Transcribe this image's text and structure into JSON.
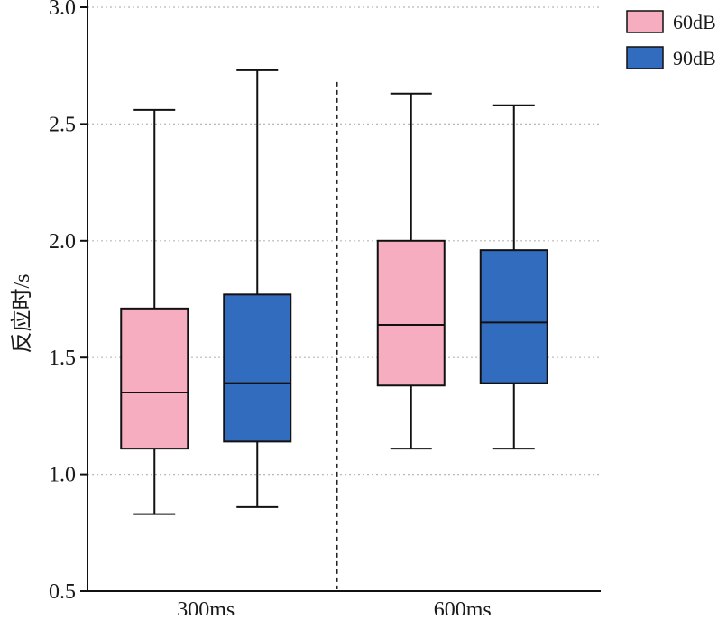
{
  "chart_data": {
    "type": "box",
    "title": "",
    "xlabel": "",
    "ylabel": "反应时/s",
    "ylim": [
      0.5,
      3.0
    ],
    "yticks": [
      0.5,
      1.0,
      1.5,
      2.0,
      2.5,
      3.0
    ],
    "ytick_labels": [
      "0.5",
      "1.0",
      "1.5",
      "2.0",
      "2.5",
      "3.0"
    ],
    "grid": "horizontal dotted",
    "legend_position": "top-right",
    "categories": [
      "300ms",
      "600ms"
    ],
    "series": [
      {
        "name": "60dB",
        "color": "#f7adc0",
        "boxes": [
          {
            "min": 0.83,
            "q1": 1.11,
            "median": 1.35,
            "q3": 1.71,
            "max": 2.56
          },
          {
            "min": 1.11,
            "q1": 1.38,
            "median": 1.64,
            "q3": 2.0,
            "max": 2.63
          }
        ]
      },
      {
        "name": "90dB",
        "color": "#326cbf",
        "boxes": [
          {
            "min": 0.86,
            "q1": 1.14,
            "median": 1.39,
            "q3": 1.77,
            "max": 2.73
          },
          {
            "min": 1.11,
            "q1": 1.39,
            "median": 1.65,
            "q3": 1.96,
            "max": 2.58
          }
        ]
      }
    ]
  }
}
